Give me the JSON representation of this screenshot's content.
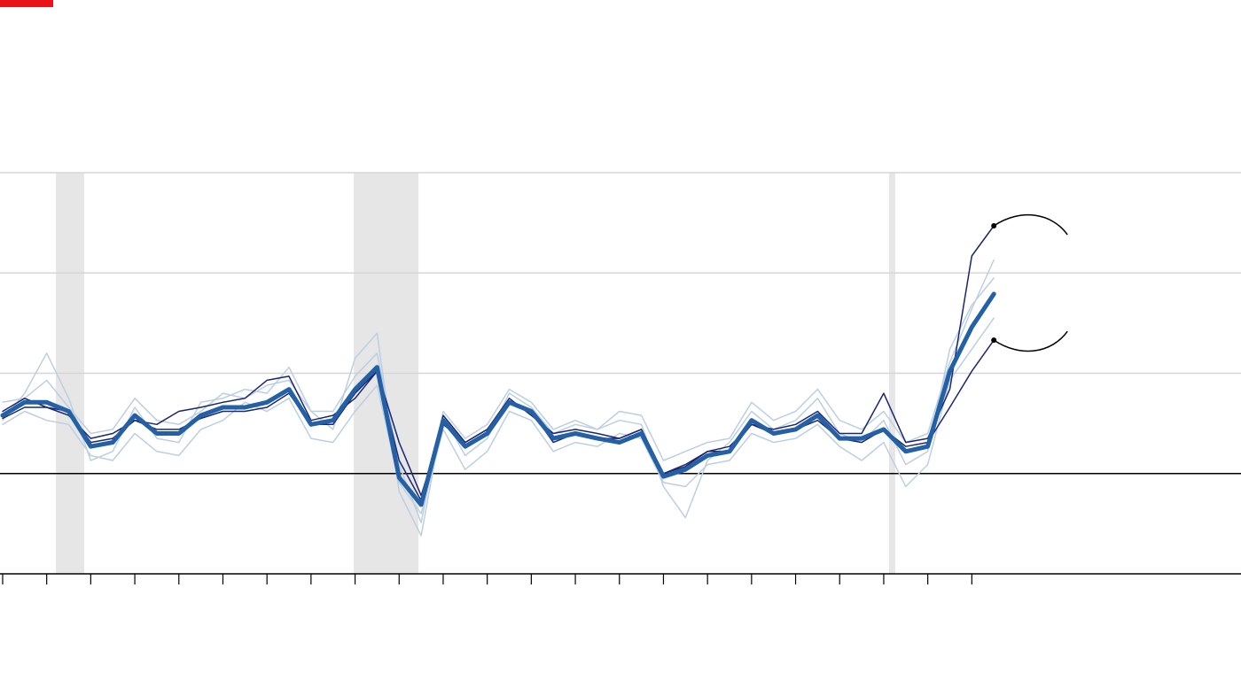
{
  "chart_data": {
    "type": "line",
    "x": [
      2000,
      2000.5,
      2001,
      2001.5,
      2002,
      2002.5,
      2003,
      2003.5,
      2004,
      2004.5,
      2005,
      2005.5,
      2006,
      2006.5,
      2007,
      2007.5,
      2008,
      2008.5,
      2009,
      2009.5,
      2010,
      2010.5,
      2011,
      2011.5,
      2012,
      2012.5,
      2013,
      2013.5,
      2014,
      2014.5,
      2015,
      2015.5,
      2016,
      2016.5,
      2017,
      2017.5,
      2018,
      2018.5,
      2019,
      2019.5,
      2020,
      2020.5,
      2021,
      2021.5,
      2022,
      2022.5
    ],
    "series": [
      {
        "color": "#bccfe2",
        "width": 1.5,
        "values": [
          0.53,
          0.8,
          1.2,
          0.75,
          0.13,
          0.22,
          0.66,
          0.35,
          0.31,
          0.71,
          0.75,
          0.84,
          0.8,
          1.06,
          0.62,
          0.44,
          1.15,
          1.4,
          -0.18,
          -0.62,
          0.58,
          0.18,
          0.35,
          0.8,
          0.66,
          0.4,
          0.49,
          0.44,
          0.53,
          0.49,
          -0.13,
          -0.44,
          0.13,
          0.31,
          0.62,
          0.44,
          0.53,
          0.75,
          0.4,
          0.31,
          0.53,
          0.09,
          0.22,
          1.24,
          1.68,
          1.95
        ]
      },
      {
        "color": "#bccfe2",
        "width": 1.5,
        "values": [
          0.49,
          0.62,
          0.53,
          0.49,
          0.18,
          0.13,
          0.4,
          0.22,
          0.18,
          0.44,
          0.53,
          0.71,
          0.62,
          0.75,
          0.35,
          0.31,
          0.62,
          0.88,
          -0.09,
          -0.4,
          0.44,
          0.04,
          0.22,
          0.62,
          0.53,
          0.22,
          0.31,
          0.27,
          0.4,
          0.35,
          -0.09,
          -0.13,
          0.09,
          0.13,
          0.4,
          0.31,
          0.35,
          0.49,
          0.27,
          0.13,
          0.31,
          -0.13,
          0.09,
          0.93,
          1.24,
          1.55
        ]
      },
      {
        "color": "#bccfe2",
        "width": 1.5,
        "values": [
          0.71,
          0.75,
          0.93,
          0.66,
          0.4,
          0.44,
          0.75,
          0.53,
          0.49,
          0.62,
          0.8,
          0.75,
          0.88,
          0.93,
          0.62,
          0.62,
          0.97,
          1.2,
          0.09,
          -0.49,
          0.62,
          0.35,
          0.49,
          0.84,
          0.71,
          0.44,
          0.53,
          0.44,
          0.62,
          0.58,
          0.13,
          0.22,
          0.31,
          0.35,
          0.71,
          0.53,
          0.62,
          0.84,
          0.53,
          0.44,
          0.62,
          0.31,
          0.4,
          1.11,
          1.64,
          2.13
        ]
      },
      {
        "color": "#1c2670",
        "width": 1.5,
        "endpoint": true,
        "values": [
          0.62,
          0.75,
          0.66,
          0.58,
          0.35,
          0.4,
          0.53,
          0.49,
          0.62,
          0.66,
          0.71,
          0.75,
          0.93,
          0.97,
          0.53,
          0.58,
          0.75,
          1.02,
          0.31,
          -0.22,
          0.49,
          0.31,
          0.44,
          0.75,
          0.58,
          0.4,
          0.44,
          0.4,
          0.35,
          0.44,
          0.0,
          0.07,
          0.22,
          0.27,
          0.49,
          0.44,
          0.49,
          0.62,
          0.4,
          0.4,
          0.8,
          0.31,
          0.35,
          0.84,
          2.17,
          2.47
        ]
      },
      {
        "color": "#1c2670",
        "width": 1.5,
        "endpoint": true,
        "values": [
          0.55,
          0.66,
          0.66,
          0.62,
          0.31,
          0.35,
          0.53,
          0.44,
          0.44,
          0.55,
          0.62,
          0.62,
          0.66,
          0.8,
          0.49,
          0.49,
          0.8,
          1.02,
          0.13,
          -0.27,
          0.58,
          0.31,
          0.44,
          0.71,
          0.62,
          0.31,
          0.4,
          0.35,
          0.35,
          0.44,
          0.0,
          0.09,
          0.22,
          0.22,
          0.49,
          0.4,
          0.44,
          0.53,
          0.35,
          0.31,
          0.44,
          0.27,
          0.31,
          0.66,
          1.02,
          1.33
        ]
      },
      {
        "color": "#2360a5",
        "width": 5,
        "values": [
          0.58,
          0.71,
          0.71,
          0.62,
          0.27,
          0.31,
          0.58,
          0.4,
          0.4,
          0.58,
          0.66,
          0.66,
          0.71,
          0.84,
          0.49,
          0.53,
          0.84,
          1.06,
          -0.04,
          -0.31,
          0.53,
          0.27,
          0.4,
          0.71,
          0.62,
          0.35,
          0.4,
          0.35,
          0.31,
          0.4,
          -0.03,
          0.04,
          0.18,
          0.22,
          0.53,
          0.4,
          0.44,
          0.58,
          0.35,
          0.35,
          0.44,
          0.22,
          0.27,
          1.02,
          1.46,
          1.79
        ]
      }
    ],
    "shaded_ranges": [
      [
        2001.21,
        2001.85
      ],
      [
        2007.97,
        2009.44
      ],
      [
        2020.12,
        2020.26
      ]
    ],
    "shade_color": "#e6e6e6",
    "xlim": [
      1999.94,
      2028.11
    ],
    "xticks": [
      2000,
      2001,
      2002,
      2003,
      2004,
      2005,
      2006,
      2007,
      2008,
      2009,
      2010,
      2011,
      2012,
      2013,
      2014,
      2015,
      2016,
      2017,
      2018,
      2019,
      2020,
      2021,
      2022
    ],
    "ylim": [
      -1,
      3
    ],
    "yticks": [
      0,
      1,
      2,
      3
    ],
    "grid": true
  }
}
